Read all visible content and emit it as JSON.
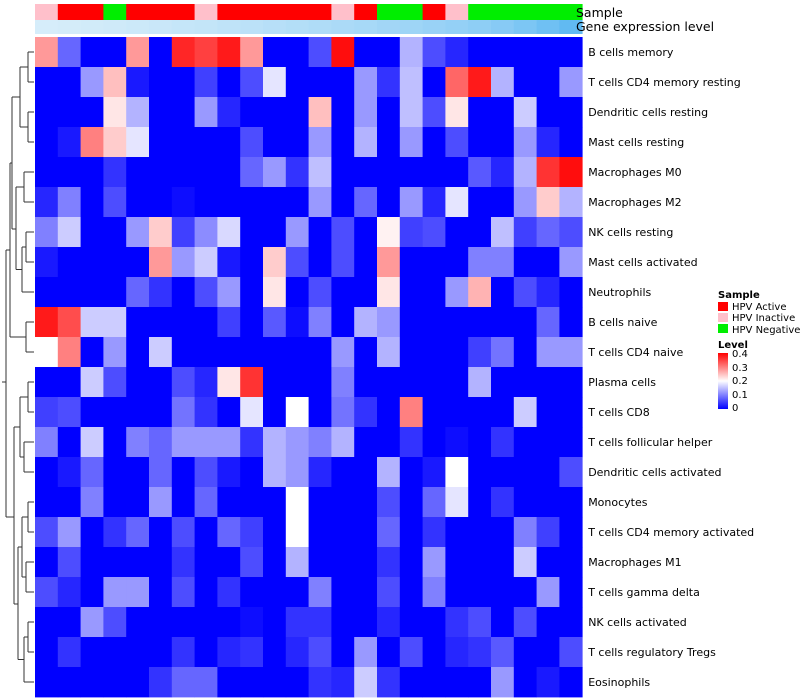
{
  "chart_data": {
    "type": "heatmap",
    "title": "",
    "annotation_rows": [
      "Sample",
      "Gene expression level"
    ],
    "sample_groups": [
      "HPV Inactive",
      "HPV Active",
      "HPV Active",
      "HPV Negative",
      "HPV Active",
      "HPV Active",
      "HPV Active",
      "HPV Inactive",
      "HPV Active",
      "HPV Active",
      "HPV Active",
      "HPV Active",
      "HPV Active",
      "HPV Inactive",
      "HPV Active",
      "HPV Negative",
      "HPV Negative",
      "HPV Active",
      "HPV Inactive",
      "HPV Negative",
      "HPV Negative",
      "HPV Negative",
      "HPV Negative",
      "HPV Negative"
    ],
    "expression_level": [
      0.05,
      0.07,
      0.09,
      0.11,
      0.13,
      0.15,
      0.18,
      0.2,
      0.23,
      0.26,
      0.29,
      0.32,
      0.35,
      0.38,
      0.41,
      0.45,
      0.48,
      0.52,
      0.56,
      0.6,
      0.66,
      0.74,
      0.84,
      0.95
    ],
    "rows": [
      "B cells memory",
      "T cells CD4 memory resting",
      "Dendritic cells resting",
      "Mast cells resting",
      "Macrophages M0",
      "Macrophages M2",
      "NK cells resting",
      "Mast cells activated",
      "Neutrophils",
      "B cells naive",
      "T cells CD4 naive",
      "Plasma cells",
      "T cells CD8",
      "T cells follicular helper",
      "Dendritic cells activated",
      "Monocytes",
      "T cells CD4 memory activated",
      "Macrophages M1",
      "T cells gamma delta",
      "NK cells activated",
      "T cells regulatory  Tregs",
      "Eosinophils"
    ],
    "values": [
      [
        0.28,
        0.08,
        0,
        0,
        0.28,
        0,
        0.37,
        0.35,
        0.38,
        0.28,
        0,
        0,
        0.06,
        0.39,
        0,
        0,
        0.14,
        0.06,
        0.03,
        0,
        0,
        0,
        0,
        0
      ],
      [
        0,
        0,
        0.12,
        0.25,
        0.02,
        0,
        0,
        0.05,
        0,
        0.06,
        0.18,
        0,
        0,
        0,
        0.12,
        0.04,
        0.15,
        0,
        0.32,
        0.38,
        0.14,
        0,
        0,
        0.12
      ],
      [
        0,
        0,
        0,
        0.22,
        0.14,
        0,
        0,
        0.12,
        0.03,
        0,
        0,
        0,
        0.25,
        0,
        0.12,
        0,
        0.15,
        0.06,
        0.22,
        0,
        0,
        0.16,
        0,
        0
      ],
      [
        0,
        0.02,
        0.3,
        0.24,
        0.18,
        0,
        0,
        0,
        0,
        0.06,
        0,
        0,
        0.12,
        0,
        0.14,
        0,
        0.12,
        0,
        0.06,
        0,
        0,
        0.12,
        0.03,
        0
      ],
      [
        0,
        0,
        0,
        0.04,
        0,
        0,
        0,
        0,
        0,
        0.08,
        0.12,
        0.04,
        0.15,
        0,
        0,
        0,
        0,
        0,
        0,
        0.07,
        0.03,
        0.14,
        0.36,
        0.39
      ],
      [
        0.03,
        0.1,
        0,
        0.06,
        0,
        0,
        0.01,
        0,
        0,
        0,
        0,
        0,
        0.12,
        0,
        0.08,
        0,
        0.12,
        0.03,
        0.18,
        0,
        0,
        0.12,
        0.24,
        0.14
      ],
      [
        0.1,
        0.16,
        0,
        0,
        0.12,
        0.24,
        0.05,
        0.11,
        0.17,
        0,
        0,
        0.12,
        0,
        0.06,
        0,
        0.21,
        0.05,
        0.06,
        0,
        0,
        0.15,
        0.05,
        0.08,
        0.06
      ],
      [
        0.02,
        0,
        0,
        0,
        0,
        0.28,
        0.12,
        0.16,
        0.02,
        0,
        0.24,
        0.06,
        0,
        0.06,
        0,
        0.28,
        0,
        0,
        0,
        0.1,
        0.1,
        0,
        0,
        0.12
      ],
      [
        0,
        0,
        0,
        0,
        0.08,
        0.04,
        0,
        0.06,
        0.12,
        0,
        0.22,
        0,
        0.06,
        0,
        0,
        0.22,
        0,
        0,
        0.12,
        0.26,
        0,
        0.06,
        0.03,
        0
      ],
      [
        0.38,
        0.34,
        0.16,
        0.16,
        0,
        0,
        0,
        0,
        0.05,
        0,
        0.07,
        0.01,
        0.1,
        0,
        0.14,
        0.12,
        0,
        0,
        0,
        0,
        0,
        0,
        0.08,
        0
      ],
      [
        0.2,
        0.3,
        0,
        0.12,
        0,
        0.16,
        0,
        0,
        0,
        0,
        0,
        0,
        0,
        0.12,
        0,
        0.14,
        0,
        0,
        0,
        0.05,
        0.09,
        0,
        0.12,
        0.12
      ],
      [
        0,
        0,
        0.16,
        0.06,
        0,
        0,
        0.06,
        0.03,
        0.22,
        0.36,
        0,
        0,
        0,
        0.1,
        0,
        0,
        0,
        0,
        0,
        0.14,
        0,
        0,
        0,
        0
      ],
      [
        0.05,
        0.06,
        0,
        0,
        0,
        0,
        0.09,
        0.04,
        0,
        0.18,
        0,
        0.2,
        0,
        0.09,
        0.04,
        0,
        0.3,
        0,
        0,
        0,
        0,
        0.16,
        0,
        0
      ],
      [
        0.1,
        0,
        0.16,
        0,
        0.1,
        0.08,
        0.12,
        0.12,
        0.12,
        0.04,
        0.14,
        0.12,
        0.1,
        0.14,
        0,
        0,
        0.04,
        0,
        0.01,
        0,
        0.04,
        0,
        0,
        0
      ],
      [
        0,
        0.02,
        0.08,
        0,
        0,
        0.08,
        0,
        0.06,
        0.02,
        0,
        0.14,
        0.12,
        0.03,
        0,
        0,
        0.14,
        0,
        0.02,
        0.2,
        0,
        0,
        0,
        0,
        0.06
      ],
      [
        0,
        0,
        0.1,
        0,
        0,
        0.12,
        0,
        0.08,
        0,
        0,
        0,
        0.2,
        0,
        0,
        0,
        0.06,
        0,
        0.08,
        0.18,
        0,
        0.04,
        0,
        0,
        0
      ],
      [
        0.06,
        0.12,
        0,
        0.04,
        0.08,
        0,
        0.06,
        0,
        0.08,
        0.05,
        0,
        0.2,
        0,
        0,
        0,
        0.08,
        0,
        0.04,
        0,
        0,
        0,
        0.1,
        0.05,
        0
      ],
      [
        0,
        0.06,
        0,
        0,
        0,
        0,
        0.04,
        0,
        0,
        0.06,
        0,
        0.14,
        0,
        0,
        0,
        0.04,
        0,
        0.12,
        0,
        0,
        0,
        0.16,
        0,
        0
      ],
      [
        0.06,
        0.03,
        0,
        0.12,
        0.12,
        0,
        0.06,
        0,
        0.04,
        0,
        0,
        0,
        0.1,
        0,
        0,
        0.06,
        0,
        0.1,
        0,
        0,
        0,
        0,
        0.12,
        0
      ],
      [
        0,
        0,
        0.12,
        0.06,
        0,
        0,
        0,
        0,
        0,
        0.01,
        0,
        0.04,
        0.04,
        0,
        0,
        0.03,
        0,
        0,
        0.04,
        0.06,
        0,
        0.06,
        0,
        0
      ],
      [
        0,
        0.04,
        0,
        0,
        0,
        0,
        0.04,
        0,
        0.03,
        0.04,
        0,
        0.03,
        0.06,
        0,
        0.12,
        0,
        0.06,
        0,
        0.03,
        0.04,
        0.07,
        0,
        0,
        0.06
      ],
      [
        0,
        0,
        0,
        0,
        0,
        0.04,
        0.08,
        0.08,
        0,
        0,
        0,
        0,
        0.04,
        0.03,
        0.16,
        0.04,
        0,
        0,
        0,
        0,
        0.12,
        0,
        0.02,
        0
      ]
    ],
    "legend": {
      "sample_title": "Sample",
      "sample_entries": [
        "HPV Active",
        "HPV Inactive",
        "HPV Negative"
      ],
      "level_title": "Level",
      "level_ticks": [
        "0.4",
        "0.3",
        "0.2",
        "0.1",
        "0"
      ],
      "level_range": [
        0,
        0.4
      ],
      "placement": "right"
    },
    "colors": {
      "low": "#0000ff",
      "mid": "#ffffff",
      "high": "#ff0000",
      "HPV Active": "#ff0000",
      "HPV Inactive": "#ffc0cb",
      "HPV Negative": "#00ee00",
      "expression_low": "#ddf0fa",
      "expression_high": "#5ab7f2"
    }
  }
}
